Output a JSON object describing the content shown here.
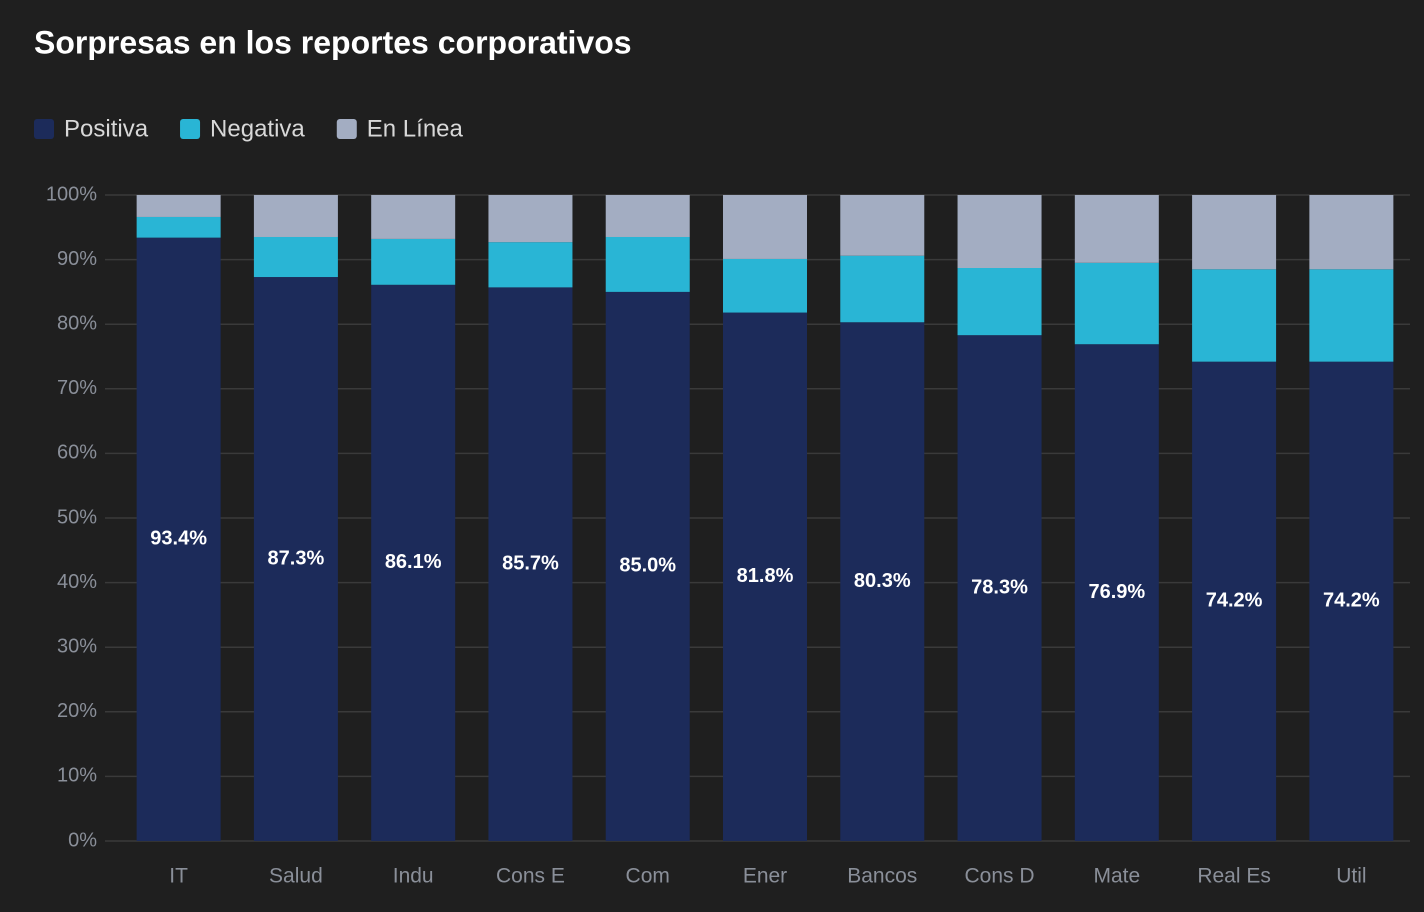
{
  "chart_data": {
    "type": "stacked_bar",
    "title": "Sorpresas en los reportes corporativos",
    "categories": [
      "IT",
      "Salud",
      "Indu",
      "Cons E",
      "Com",
      "Ener",
      "Bancos",
      "Cons D",
      "Mate",
      "Real Es",
      "Util"
    ],
    "series": [
      {
        "name": "Positiva",
        "color": "#1c2b5a",
        "values": [
          93.4,
          87.3,
          86.1,
          85.7,
          85.0,
          81.8,
          80.3,
          78.3,
          76.9,
          74.2,
          74.2
        ],
        "value_labels": [
          "93.4%",
          "87.3%",
          "86.1%",
          "85.7%",
          "85.0%",
          "81.8%",
          "80.3%",
          "78.3%",
          "76.9%",
          "74.2%",
          "74.2%"
        ]
      },
      {
        "name": "Negativa",
        "color": "#29b5d5",
        "values": [
          3.2,
          6.2,
          7.1,
          7.0,
          8.5,
          8.3,
          10.3,
          10.4,
          12.6,
          14.3,
          14.3
        ]
      },
      {
        "name": "En Línea",
        "color": "#a3adc2",
        "values": [
          3.4,
          6.5,
          6.8,
          7.3,
          6.5,
          9.9,
          9.4,
          11.3,
          10.5,
          11.5,
          11.5
        ]
      }
    ],
    "ylim": [
      0,
      100
    ],
    "yticks": [
      {
        "value": 0,
        "label": "0%"
      },
      {
        "value": 10,
        "label": "10%"
      },
      {
        "value": 20,
        "label": "20%"
      },
      {
        "value": 30,
        "label": "30%"
      },
      {
        "value": 40,
        "label": "40%"
      },
      {
        "value": 50,
        "label": "50%"
      },
      {
        "value": 60,
        "label": "60%"
      },
      {
        "value": 70,
        "label": "70%"
      },
      {
        "value": 80,
        "label": "80%"
      },
      {
        "value": 90,
        "label": "90%"
      },
      {
        "value": 100,
        "label": "100%"
      }
    ],
    "grid": true
  }
}
